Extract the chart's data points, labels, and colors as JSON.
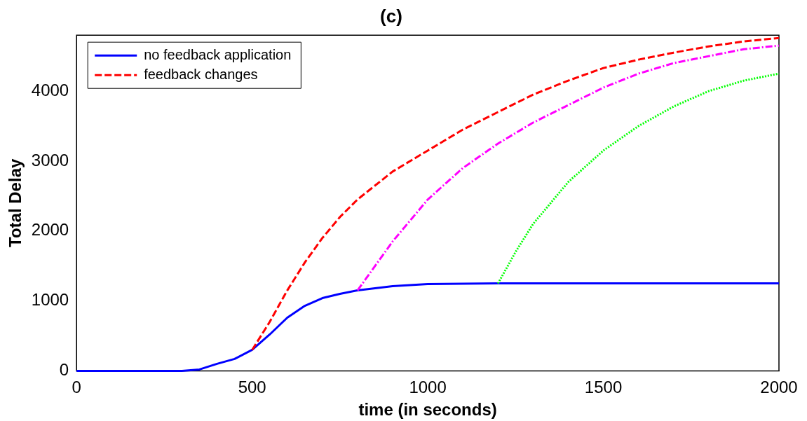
{
  "chart_data": {
    "type": "line",
    "title": "(c)",
    "xlabel": "time (in seconds)",
    "ylabel": "Total Delay",
    "xlim": [
      0,
      2000
    ],
    "xticks": [
      0,
      500,
      1000,
      1500,
      2000
    ],
    "ylim": [
      0,
      4800
    ],
    "yticks": [
      0,
      1000,
      2000,
      3000,
      4000
    ],
    "grid": false,
    "legend": "top left",
    "marker": "none",
    "series": [
      {
        "name": "no feedback application",
        "color": "#0000ff",
        "line_style": "solid",
        "x": [
          0,
          300,
          350,
          400,
          450,
          500,
          550,
          600,
          650,
          700,
          750,
          800,
          900,
          1000,
          1200,
          1500,
          2000
        ],
        "values": [
          0,
          0,
          20,
          100,
          170,
          300,
          520,
          760,
          930,
          1040,
          1100,
          1150,
          1210,
          1240,
          1250,
          1250,
          1250
        ]
      },
      {
        "name": "feedback changes",
        "color": "#ff0000",
        "line_style": "dashed",
        "x": [
          500,
          550,
          600,
          650,
          700,
          750,
          800,
          900,
          1000,
          1100,
          1200,
          1300,
          1400,
          1500,
          1600,
          1700,
          1800,
          1900,
          2000
        ],
        "values": [
          300,
          700,
          1150,
          1550,
          1900,
          2200,
          2450,
          2850,
          3150,
          3450,
          3700,
          3950,
          4150,
          4330,
          4450,
          4550,
          4640,
          4710,
          4760
        ]
      },
      {
        "color": "#ff00ff",
        "line_style": "dashdot",
        "x": [
          800,
          850,
          900,
          950,
          1000,
          1100,
          1200,
          1300,
          1400,
          1500,
          1600,
          1700,
          1800,
          1900,
          2000
        ],
        "values": [
          1150,
          1500,
          1850,
          2150,
          2450,
          2900,
          3250,
          3550,
          3800,
          4050,
          4250,
          4400,
          4500,
          4600,
          4650
        ]
      },
      {
        "color": "#00ff00",
        "line_style": "dotted",
        "x": [
          1200,
          1250,
          1300,
          1400,
          1500,
          1600,
          1700,
          1800,
          1900,
          2000
        ],
        "values": [
          1250,
          1700,
          2100,
          2700,
          3150,
          3500,
          3780,
          4000,
          4150,
          4250
        ]
      }
    ]
  }
}
